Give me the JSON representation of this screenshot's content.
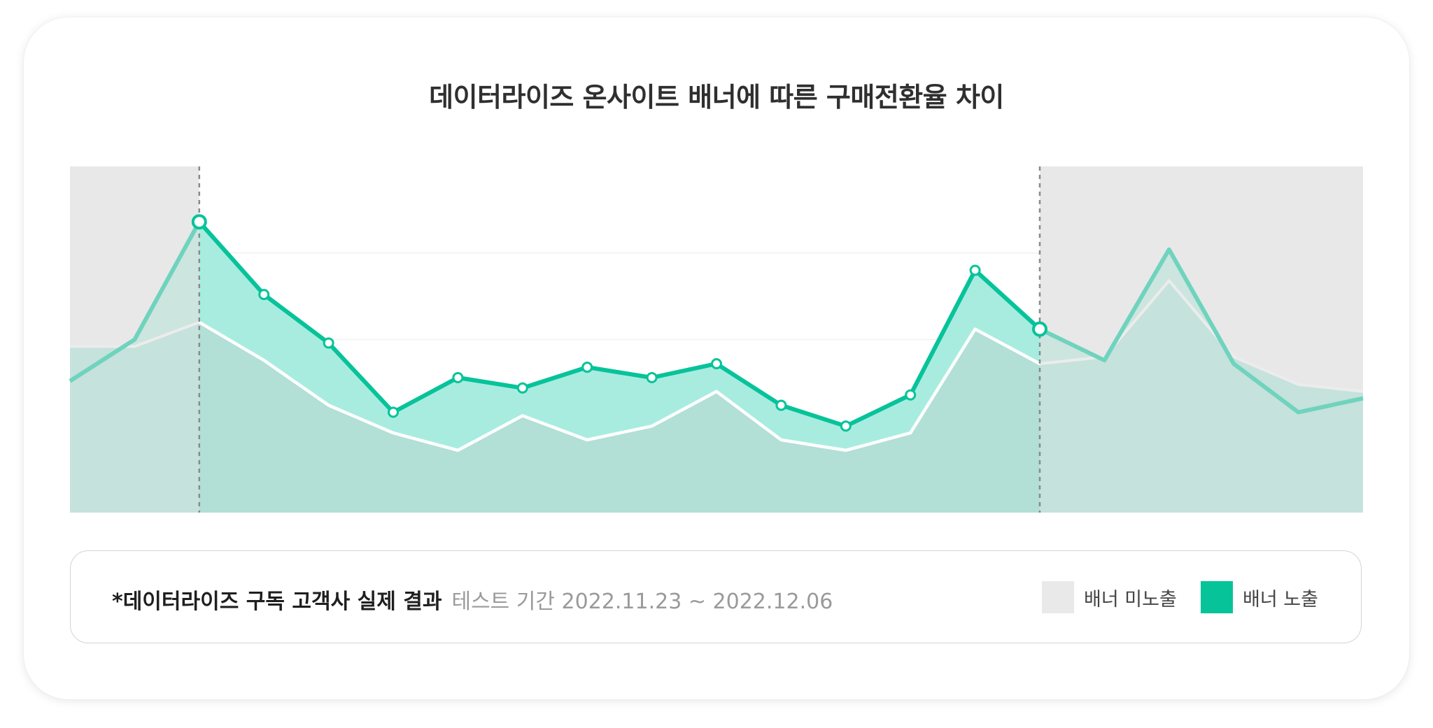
{
  "colors": {
    "banner_off": "#e9e9e9",
    "banner_on": "#07c39a",
    "banner_on_fill": "#a8ece0",
    "overlap_fill": "#b2dfd6",
    "white_line": "#ffffff"
  },
  "chart_data": {
    "type": "area",
    "title": "데이터라이즈 온사이트 배너에 따른 구매전환율 차이",
    "xlabel": "",
    "ylabel": "",
    "x": [
      0,
      1,
      2,
      3,
      4,
      5,
      6,
      7,
      8,
      9,
      10,
      11,
      12,
      13,
      14,
      15,
      16,
      17,
      18,
      19,
      20
    ],
    "ylim": [
      0,
      100
    ],
    "grid": true,
    "highlight_range": [
      2,
      15
    ],
    "series": [
      {
        "name": "배너 노출",
        "values": [
          38,
          50,
          84,
          63,
          49,
          29,
          39,
          36,
          42,
          39,
          43,
          31,
          25,
          34,
          70,
          53,
          44,
          76,
          43,
          29,
          33
        ]
      },
      {
        "name": "배너 미노출",
        "values": [
          48,
          48,
          55,
          44,
          31,
          23,
          18,
          28,
          21,
          25,
          35,
          21,
          18,
          23,
          53,
          43,
          45,
          67,
          45,
          37,
          35
        ]
      }
    ]
  },
  "legend": [
    {
      "label": "배너 미노출",
      "color": "#e9e9e9"
    },
    {
      "label": "배너 노출",
      "color": "#07c39a"
    }
  ],
  "footnote": {
    "main": "*데이터라이즈 구독 고객사 실제 결과",
    "period": "테스트 기간 2022.11.23 ~ 2022.12.06"
  }
}
